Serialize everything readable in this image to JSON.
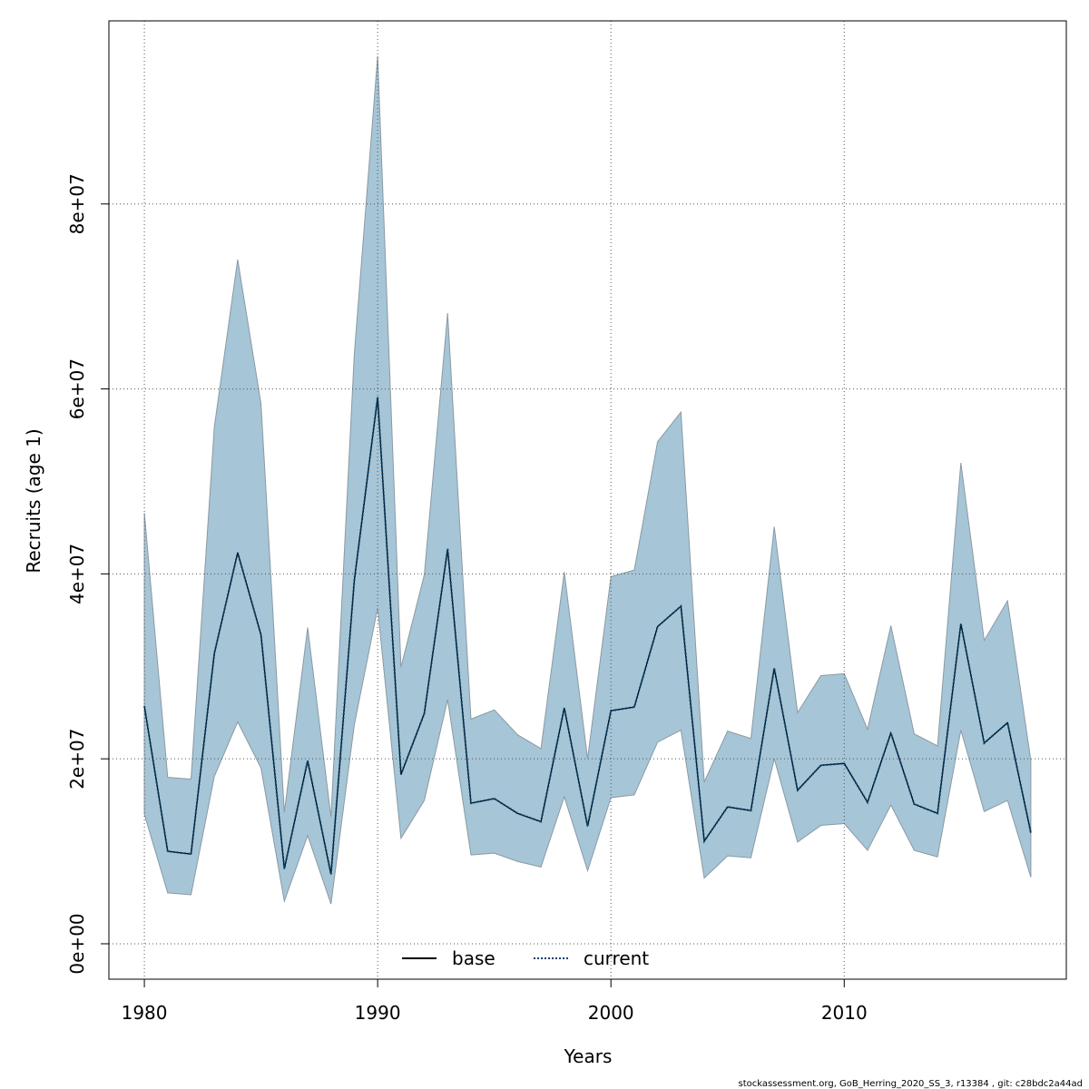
{
  "chart_data": {
    "type": "line",
    "xlabel": "Years",
    "ylabel": "Recruits (age 1)",
    "footnote": "stockassessment.org, GoB_Herring_2020_SS_3, r13384 , git: c28bdc2a44ad",
    "x": [
      1980,
      1981,
      1982,
      1983,
      1984,
      1985,
      1986,
      1987,
      1988,
      1989,
      1990,
      1991,
      1992,
      1993,
      1994,
      1995,
      1996,
      1997,
      1998,
      1999,
      2000,
      2001,
      2002,
      2003,
      2004,
      2005,
      2006,
      2007,
      2008,
      2009,
      2010,
      2011,
      2012,
      2013,
      2014,
      2015,
      2016,
      2017,
      2018
    ],
    "xlim": [
      1978.48,
      2019.52
    ],
    "xticks": [
      1980,
      1990,
      2000,
      2010
    ],
    "ylim": [
      -3830000,
      99800000
    ],
    "yticks": [
      {
        "value": 0,
        "label": "0e+00"
      },
      {
        "value": 20000000,
        "label": "2e+07"
      },
      {
        "value": 40000000,
        "label": "4e+07"
      },
      {
        "value": 60000000,
        "label": "6e+07"
      },
      {
        "value": 80000000,
        "label": "8e+07"
      }
    ],
    "grid": true,
    "legend": "bottom",
    "band": {
      "color": "#a6c5d6",
      "upper": [
        46600000,
        18000000,
        17800000,
        55900000,
        74000000,
        58400000,
        14200000,
        34200000,
        13700000,
        63800000,
        96000000,
        29900000,
        39900000,
        68200000,
        24300000,
        25300000,
        22600000,
        21100000,
        40200000,
        20000000,
        39700000,
        40400000,
        54300000,
        57500000,
        17500000,
        23000000,
        22200000,
        45100000,
        25000000,
        29000000,
        29200000,
        23200000,
        34400000,
        22700000,
        21400000,
        52000000,
        32800000,
        37100000,
        19800000
      ],
      "lower": [
        14000000,
        5500000,
        5300000,
        18100000,
        24000000,
        19000000,
        4600000,
        11700000,
        4300000,
        23700000,
        36300000,
        11400000,
        15500000,
        26400000,
        9600000,
        9800000,
        8900000,
        8300000,
        15900000,
        7900000,
        15800000,
        16100000,
        21800000,
        23100000,
        7100000,
        9500000,
        9300000,
        20000000,
        11000000,
        12800000,
        13000000,
        10100000,
        15000000,
        10100000,
        9400000,
        23100000,
        14300000,
        15500000,
        7200000
      ]
    },
    "series": [
      {
        "name": "base",
        "color": "#000000",
        "values": [
          25700000,
          10000000,
          9700000,
          31400000,
          42300000,
          33400000,
          8100000,
          19800000,
          7500000,
          39300000,
          59100000,
          18300000,
          24900000,
          42700000,
          15200000,
          15700000,
          14100000,
          13200000,
          25500000,
          12700000,
          25200000,
          25600000,
          34300000,
          36500000,
          11100000,
          14800000,
          14400000,
          29800000,
          16600000,
          19300000,
          19500000,
          15300000,
          22800000,
          15100000,
          14100000,
          34600000,
          21700000,
          23900000,
          12000000
        ]
      },
      {
        "name": "current",
        "color": "#00406e",
        "dashed": true,
        "values": [
          25700000,
          10000000,
          9700000,
          31400000,
          42300000,
          33400000,
          8100000,
          19800000,
          7500000,
          39300000,
          59100000,
          18300000,
          24900000,
          42700000,
          15200000,
          15700000,
          14100000,
          13200000,
          25500000,
          12700000,
          25200000,
          25600000,
          34300000,
          36500000,
          11100000,
          14800000,
          14400000,
          29800000,
          16600000,
          19300000,
          19500000,
          15300000,
          22800000,
          15100000,
          14100000,
          34600000,
          21700000,
          23900000,
          12000000
        ]
      }
    ]
  }
}
